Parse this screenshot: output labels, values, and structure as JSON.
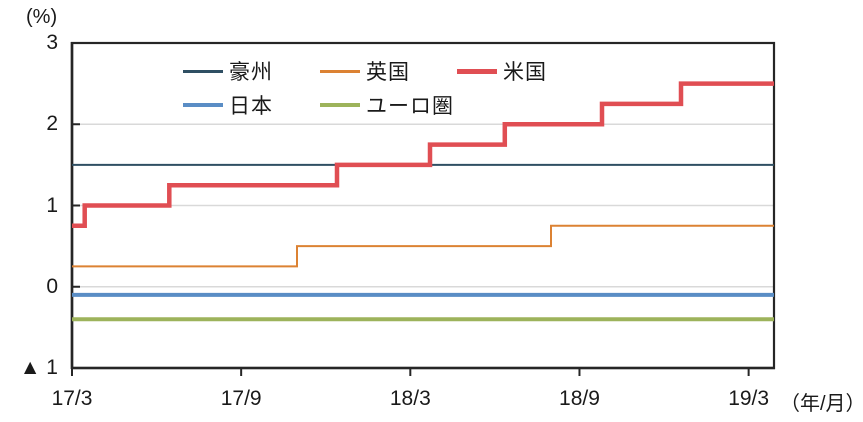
{
  "chart_data": {
    "type": "line",
    "line_style": "step",
    "y_unit_label": "(%)",
    "x_unit_label": "（年/月）",
    "ylim": [
      -1,
      3
    ],
    "xlim_months": [
      0,
      24.9
    ],
    "x_axis_origin_label": "17/3",
    "x_ticks": [
      {
        "m": 0,
        "label": "17/3"
      },
      {
        "m": 6,
        "label": "17/9"
      },
      {
        "m": 12,
        "label": "18/3"
      },
      {
        "m": 18,
        "label": "18/9"
      },
      {
        "m": 24,
        "label": "19/3"
      }
    ],
    "y_ticks": [
      {
        "v": 3,
        "label": "3"
      },
      {
        "v": 2,
        "label": "2"
      },
      {
        "v": 1,
        "label": "1"
      },
      {
        "v": 0,
        "label": "0"
      },
      {
        "v": -1,
        "label": "▲ 1"
      }
    ],
    "gridlines_y": [
      2,
      1,
      0
    ],
    "colors": {
      "axis": "#262626",
      "grid": "#d9d9d9",
      "text": "#1a1a1a"
    },
    "series": [
      {
        "id": "australia",
        "name": "豪州",
        "color": "#2f4f63",
        "width": 2,
        "points": [
          [
            0,
            1.5
          ],
          [
            24.9,
            1.5
          ]
        ]
      },
      {
        "id": "uk",
        "name": "英国",
        "color": "#dc8233",
        "width": 2,
        "points": [
          [
            0,
            0.25
          ],
          [
            7.98,
            0.25
          ],
          [
            7.98,
            0.5
          ],
          [
            16.99,
            0.5
          ],
          [
            16.99,
            0.75
          ],
          [
            24.9,
            0.75
          ]
        ]
      },
      {
        "id": "japan",
        "name": "日本",
        "color": "#5a8dc5",
        "width": 4,
        "points": [
          [
            0,
            -0.1
          ],
          [
            24.9,
            -0.1
          ]
        ]
      },
      {
        "id": "eurozone",
        "name": "ユーロ圏",
        "color": "#9db35b",
        "width": 4,
        "points": [
          [
            0,
            -0.4
          ],
          [
            24.9,
            -0.4
          ]
        ]
      },
      {
        "id": "us",
        "name": "米国",
        "color": "#e04e53",
        "width": 4.5,
        "points": [
          [
            0,
            0.75
          ],
          [
            0.45,
            0.75
          ],
          [
            0.45,
            1.0
          ],
          [
            3.45,
            1.0
          ],
          [
            3.45,
            1.25
          ],
          [
            9.4,
            1.25
          ],
          [
            9.4,
            1.5
          ],
          [
            12.7,
            1.5
          ],
          [
            12.7,
            1.75
          ],
          [
            15.35,
            1.75
          ],
          [
            15.35,
            2.0
          ],
          [
            18.8,
            2.0
          ],
          [
            18.8,
            2.25
          ],
          [
            21.6,
            2.25
          ],
          [
            21.6,
            2.5
          ],
          [
            24.9,
            2.5
          ]
        ]
      }
    ],
    "legend_rows": [
      [
        "australia",
        "uk",
        "us"
      ],
      [
        "japan",
        "eurozone"
      ]
    ]
  }
}
